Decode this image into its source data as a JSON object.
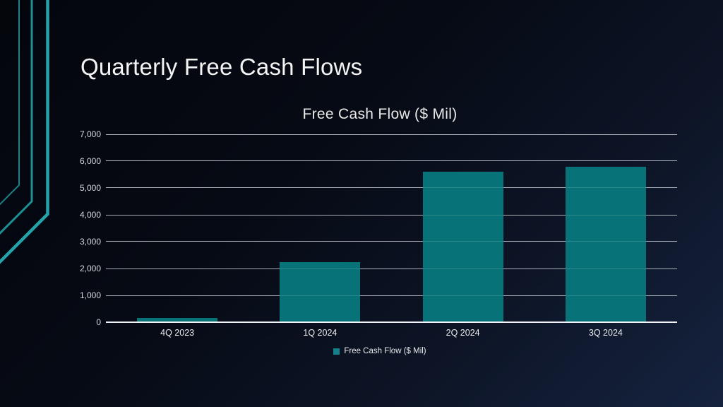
{
  "slide": {
    "title": "Quarterly Free Cash Flows"
  },
  "chart_data": {
    "type": "bar",
    "title": "Free Cash Flow ($ Mil)",
    "categories": [
      "4Q 2023",
      "1Q 2024",
      "2Q 2024",
      "3Q 2024"
    ],
    "series": [
      {
        "name": "Free Cash Flow ($ Mil)",
        "values": [
          150,
          2250,
          5600,
          5800
        ]
      }
    ],
    "xlabel": "",
    "ylabel": "",
    "ylim": [
      0,
      7000
    ],
    "ytick_interval": 1000,
    "yticks": [
      "0",
      "1,000",
      "2,000",
      "3,000",
      "4,000",
      "5,000",
      "6,000",
      "7,000"
    ],
    "grid": true,
    "legend_position": "bottom",
    "bar_width_pct_of_slot": 56.4
  },
  "legend": {
    "label": "Free Cash Flow ($ Mil)"
  },
  "colors": {
    "background_top": "#04060c",
    "background_bottom": "#16233f",
    "bar_fill": "#077378",
    "legend_marker": "#12818a",
    "accent_line_outer": "#24a4aa",
    "accent_line_mid": "#1d9096",
    "accent_line_inner": "#1a8288",
    "gridline": "#c4c9d4",
    "axis_line": "#f2f3f6",
    "title_text": "#f4f4f4",
    "tick_text": "#d7dade"
  }
}
